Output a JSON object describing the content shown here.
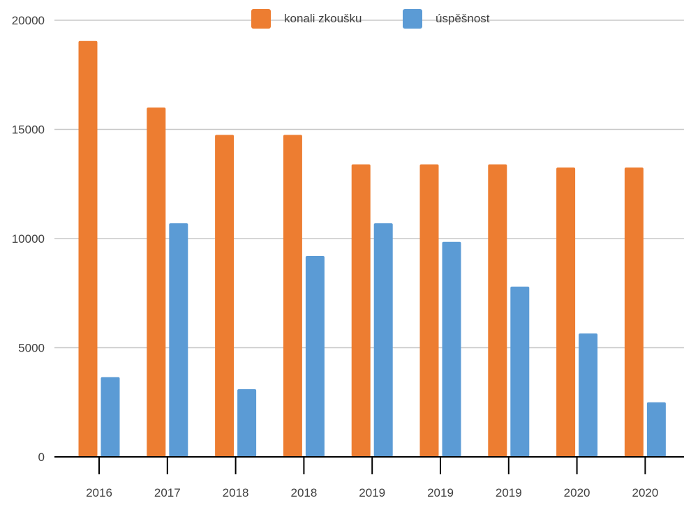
{
  "colors": {
    "konali": "#ED7D31",
    "uspesnost": "#5B9BD5",
    "grid": "#C8C8C8",
    "axis": "#000000",
    "text": "#404040"
  },
  "chart_data": {
    "type": "bar",
    "categories": [
      "2016",
      "2017",
      "2018",
      "2018",
      "2019",
      "2019",
      "2019",
      "2020",
      "2020"
    ],
    "series": [
      {
        "name": "konali zkoušku",
        "color_key": "konali",
        "values": [
          19050,
          16000,
          14750,
          14750,
          13400,
          13400,
          13400,
          13250,
          13250
        ]
      },
      {
        "name": "úspěšnost",
        "color_key": "uspesnost",
        "values": [
          3650,
          10700,
          3100,
          9200,
          10700,
          9850,
          7800,
          5650,
          2500
        ]
      }
    ],
    "yticks": [
      "0",
      "5000",
      "10000",
      "15000",
      "20000"
    ],
    "ylim": [
      0,
      20000
    ],
    "grid": true,
    "legend": "top-center"
  }
}
